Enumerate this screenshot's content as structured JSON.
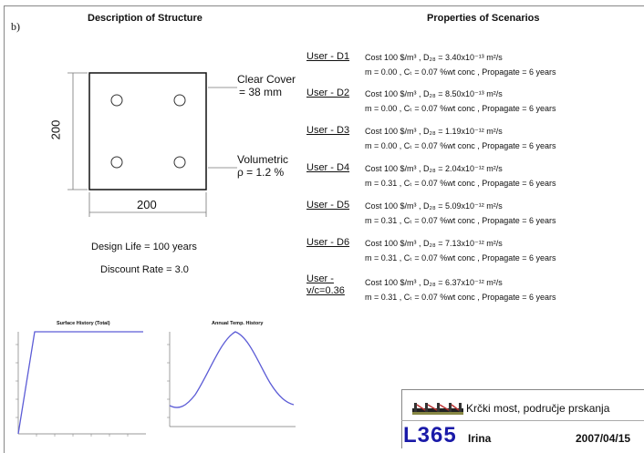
{
  "labels": {
    "b": "b)",
    "left_header": "Description of Structure",
    "right_header": "Properties of Scenarios",
    "dim_vertical": "200",
    "dim_horizontal": "200",
    "clear_cover_1": "Clear Cover",
    "clear_cover_2": "= 38 mm",
    "volumetric_1": "Volumetric",
    "volumetric_2": "ρ = 1.2 %",
    "design_life": "Design Life = 100 years",
    "discount_rate": "Discount Rate = 3.0"
  },
  "scenarios": [
    {
      "name": "User - D1",
      "line1": "Cost  100 $/m³ , D₂₈ = 3.40x10⁻¹³ m²/s",
      "line2": "m = 0.00 , Cₜ = 0.07 %wt conc  ,  Propagate = 6 years"
    },
    {
      "name": "User - D2",
      "line1": "Cost  100 $/m³ , D₂₈ = 8.50x10⁻¹³ m²/s",
      "line2": "m = 0.00 , Cₜ = 0.07 %wt conc  ,  Propagate = 6 years"
    },
    {
      "name": "User - D3",
      "line1": "Cost  100 $/m³ , D₂₈ = 1.19x10⁻¹² m²/s",
      "line2": "m = 0.00 , Cₜ = 0.07 %wt conc  ,  Propagate = 6 years"
    },
    {
      "name": "User - D4",
      "line1": "Cost  100 $/m³ , D₂₈ = 2.04x10⁻¹² m²/s",
      "line2": "m = 0.31 , Cₜ = 0.07 %wt conc  ,  Propagate = 6 years"
    },
    {
      "name": "User - D5",
      "line1": "Cost  100 $/m³ , D₂₈ = 5.09x10⁻¹² m²/s",
      "line2": "m = 0.31 , Cₜ = 0.07 %wt conc  ,  Propagate = 6 years"
    },
    {
      "name": "User - D6",
      "line1": "Cost  100 $/m³ , D₂₈ = 7.13x10⁻¹² m²/s",
      "line2": "m = 0.31 , Cₜ = 0.07 %wt conc  ,  Propagate = 6 years"
    },
    {
      "name": "User -",
      "name2": "v/c=0.36",
      "line1": "Cost  100 $/m³ , D₂₈ = 6.37x10⁻¹² m²/s",
      "line2": "m = 0.31 , Cₜ = 0.07 %wt conc  ,  Propagate = 6 years"
    }
  ],
  "mini_charts": {
    "surface_title": "Surface History (Total)",
    "temp_title": "Annual Temp. History"
  },
  "titleblock": {
    "logo_text": "L365",
    "project": "Krčki most, područje prskanja",
    "author": "Irina",
    "date": "2007/04/15"
  },
  "colors": {
    "line_blue": "#5c5cd6",
    "logo_blue": "#1a1aa8",
    "frame_gray": "#888888"
  }
}
